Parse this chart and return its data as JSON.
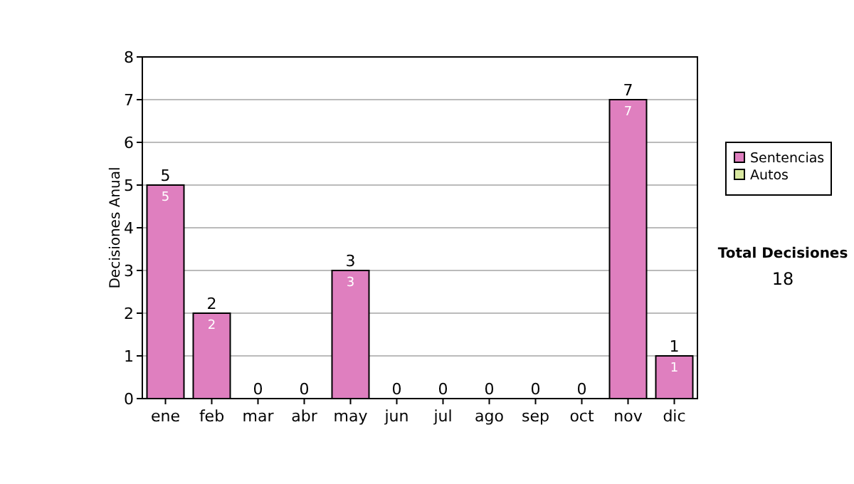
{
  "chart_data": {
    "type": "bar",
    "ylabel": "Decisiones Anual",
    "categories": [
      "ene",
      "feb",
      "mar",
      "abr",
      "may",
      "jun",
      "jul",
      "ago",
      "sep",
      "oct",
      "nov",
      "dic"
    ],
    "series": [
      {
        "name": "Sentencias",
        "color": "#df7fbf",
        "values": [
          5,
          2,
          0,
          0,
          3,
          0,
          0,
          0,
          0,
          0,
          7,
          1
        ],
        "value_labels": [
          "5",
          "2",
          null,
          null,
          "3",
          null,
          null,
          null,
          null,
          null,
          "7",
          "1"
        ]
      },
      {
        "name": "Autos",
        "color": "#d9e8a0",
        "values": [
          0,
          0,
          0,
          0,
          0,
          0,
          0,
          0,
          0,
          0,
          0,
          0
        ]
      }
    ],
    "stacked": true,
    "totals": [
      "5",
      "2",
      "0",
      "0",
      "3",
      "0",
      "0",
      "0",
      "0",
      "0",
      "7",
      "1"
    ],
    "ylim": [
      0,
      8
    ],
    "yticks": [
      0,
      1,
      2,
      3,
      4,
      5,
      6,
      7,
      8
    ],
    "grid": "y",
    "legend": "right",
    "annotations": [
      "Total Decisiones",
      "18"
    ]
  }
}
